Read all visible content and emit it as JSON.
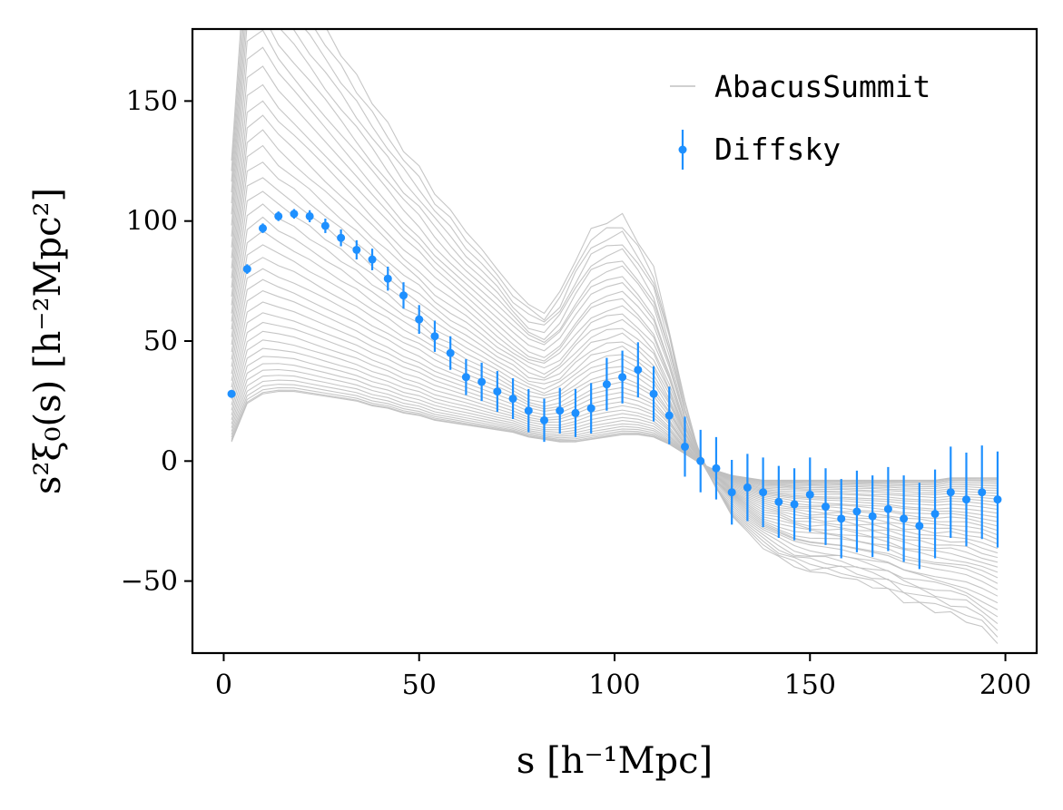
{
  "chart_data": {
    "type": "line",
    "title": "",
    "xlabel": "s [h⁻¹Mpc]",
    "ylabel": "s²ξ₀(s) [h⁻²Mpc²]",
    "xlim": [
      -8,
      208
    ],
    "ylim": [
      -80,
      180
    ],
    "xticks": [
      0,
      50,
      100,
      150,
      200
    ],
    "yticks": [
      -50,
      0,
      50,
      100,
      150
    ],
    "xtick_labels": [
      "0",
      "50",
      "100",
      "150",
      "200"
    ],
    "ytick_labels": [
      "−50",
      "0",
      "50",
      "100",
      "150"
    ],
    "grid": false,
    "legend_position": "top-right",
    "x": [
      2,
      6,
      10,
      14,
      18,
      22,
      26,
      30,
      34,
      38,
      42,
      46,
      50,
      54,
      58,
      62,
      66,
      70,
      74,
      78,
      82,
      86,
      90,
      94,
      98,
      102,
      106,
      110,
      114,
      118,
      122,
      126,
      130,
      134,
      138,
      142,
      146,
      150,
      154,
      158,
      162,
      166,
      170,
      174,
      178,
      182,
      186,
      190,
      194,
      198
    ],
    "series": [
      {
        "name": "AbacusSummit",
        "kind": "ensemble_lines",
        "color": "#c0c0c0",
        "count": 40,
        "min_curve": [
          8,
          24,
          28,
          29,
          29,
          28,
          27,
          26,
          25,
          23,
          22,
          20,
          19,
          17,
          16,
          15,
          14,
          13,
          12,
          10,
          9,
          8,
          8,
          9,
          10,
          11,
          11,
          10,
          7,
          3,
          -1,
          -4,
          -6,
          -7,
          -8,
          -8,
          -8,
          -8,
          -8,
          -8,
          -8,
          -8,
          -8,
          -8,
          -8,
          -8,
          -7,
          -7,
          -7,
          -7
        ],
        "max_curve": [
          125,
          220,
          225,
          210,
          200,
          190,
          180,
          170,
          160,
          150,
          140,
          130,
          122,
          112,
          104,
          96,
          88,
          80,
          72,
          65,
          62,
          70,
          84,
          96,
          100,
          102,
          92,
          80,
          55,
          24,
          2,
          -12,
          -22,
          -30,
          -36,
          -40,
          -44,
          -46,
          -47,
          -48,
          -50,
          -52,
          -54,
          -58,
          -60,
          -62,
          -64,
          -66,
          -70,
          -75
        ]
      },
      {
        "name": "Diffsky",
        "kind": "errorbar",
        "color": "#1e90ff",
        "y": [
          28,
          80,
          97,
          102,
          103,
          102,
          98,
          93,
          88,
          84,
          76,
          69,
          59,
          52,
          45,
          35,
          33,
          29,
          26,
          21,
          17,
          21,
          20,
          22,
          32,
          35,
          38,
          28,
          19,
          6,
          0,
          -3,
          -13,
          -11,
          -13,
          -17,
          -18,
          -14,
          -19,
          -24,
          -21,
          -23,
          -20,
          -24,
          -27,
          -22,
          -13,
          -16,
          -13,
          -16
        ],
        "yerr": [
          1.5,
          2,
          2,
          2,
          2,
          2.5,
          3,
          3.5,
          4,
          4.5,
          5,
          5.5,
          6,
          6.5,
          7,
          7.5,
          8,
          8.5,
          8.5,
          9,
          9,
          9.5,
          10,
          10.5,
          11,
          11,
          11.5,
          11.5,
          12,
          12.5,
          13,
          13,
          13.5,
          14,
          14.5,
          15,
          15,
          15.5,
          16,
          16.5,
          17,
          17,
          17.5,
          18,
          18,
          18.5,
          19,
          19.5,
          19.5,
          20
        ]
      }
    ]
  }
}
